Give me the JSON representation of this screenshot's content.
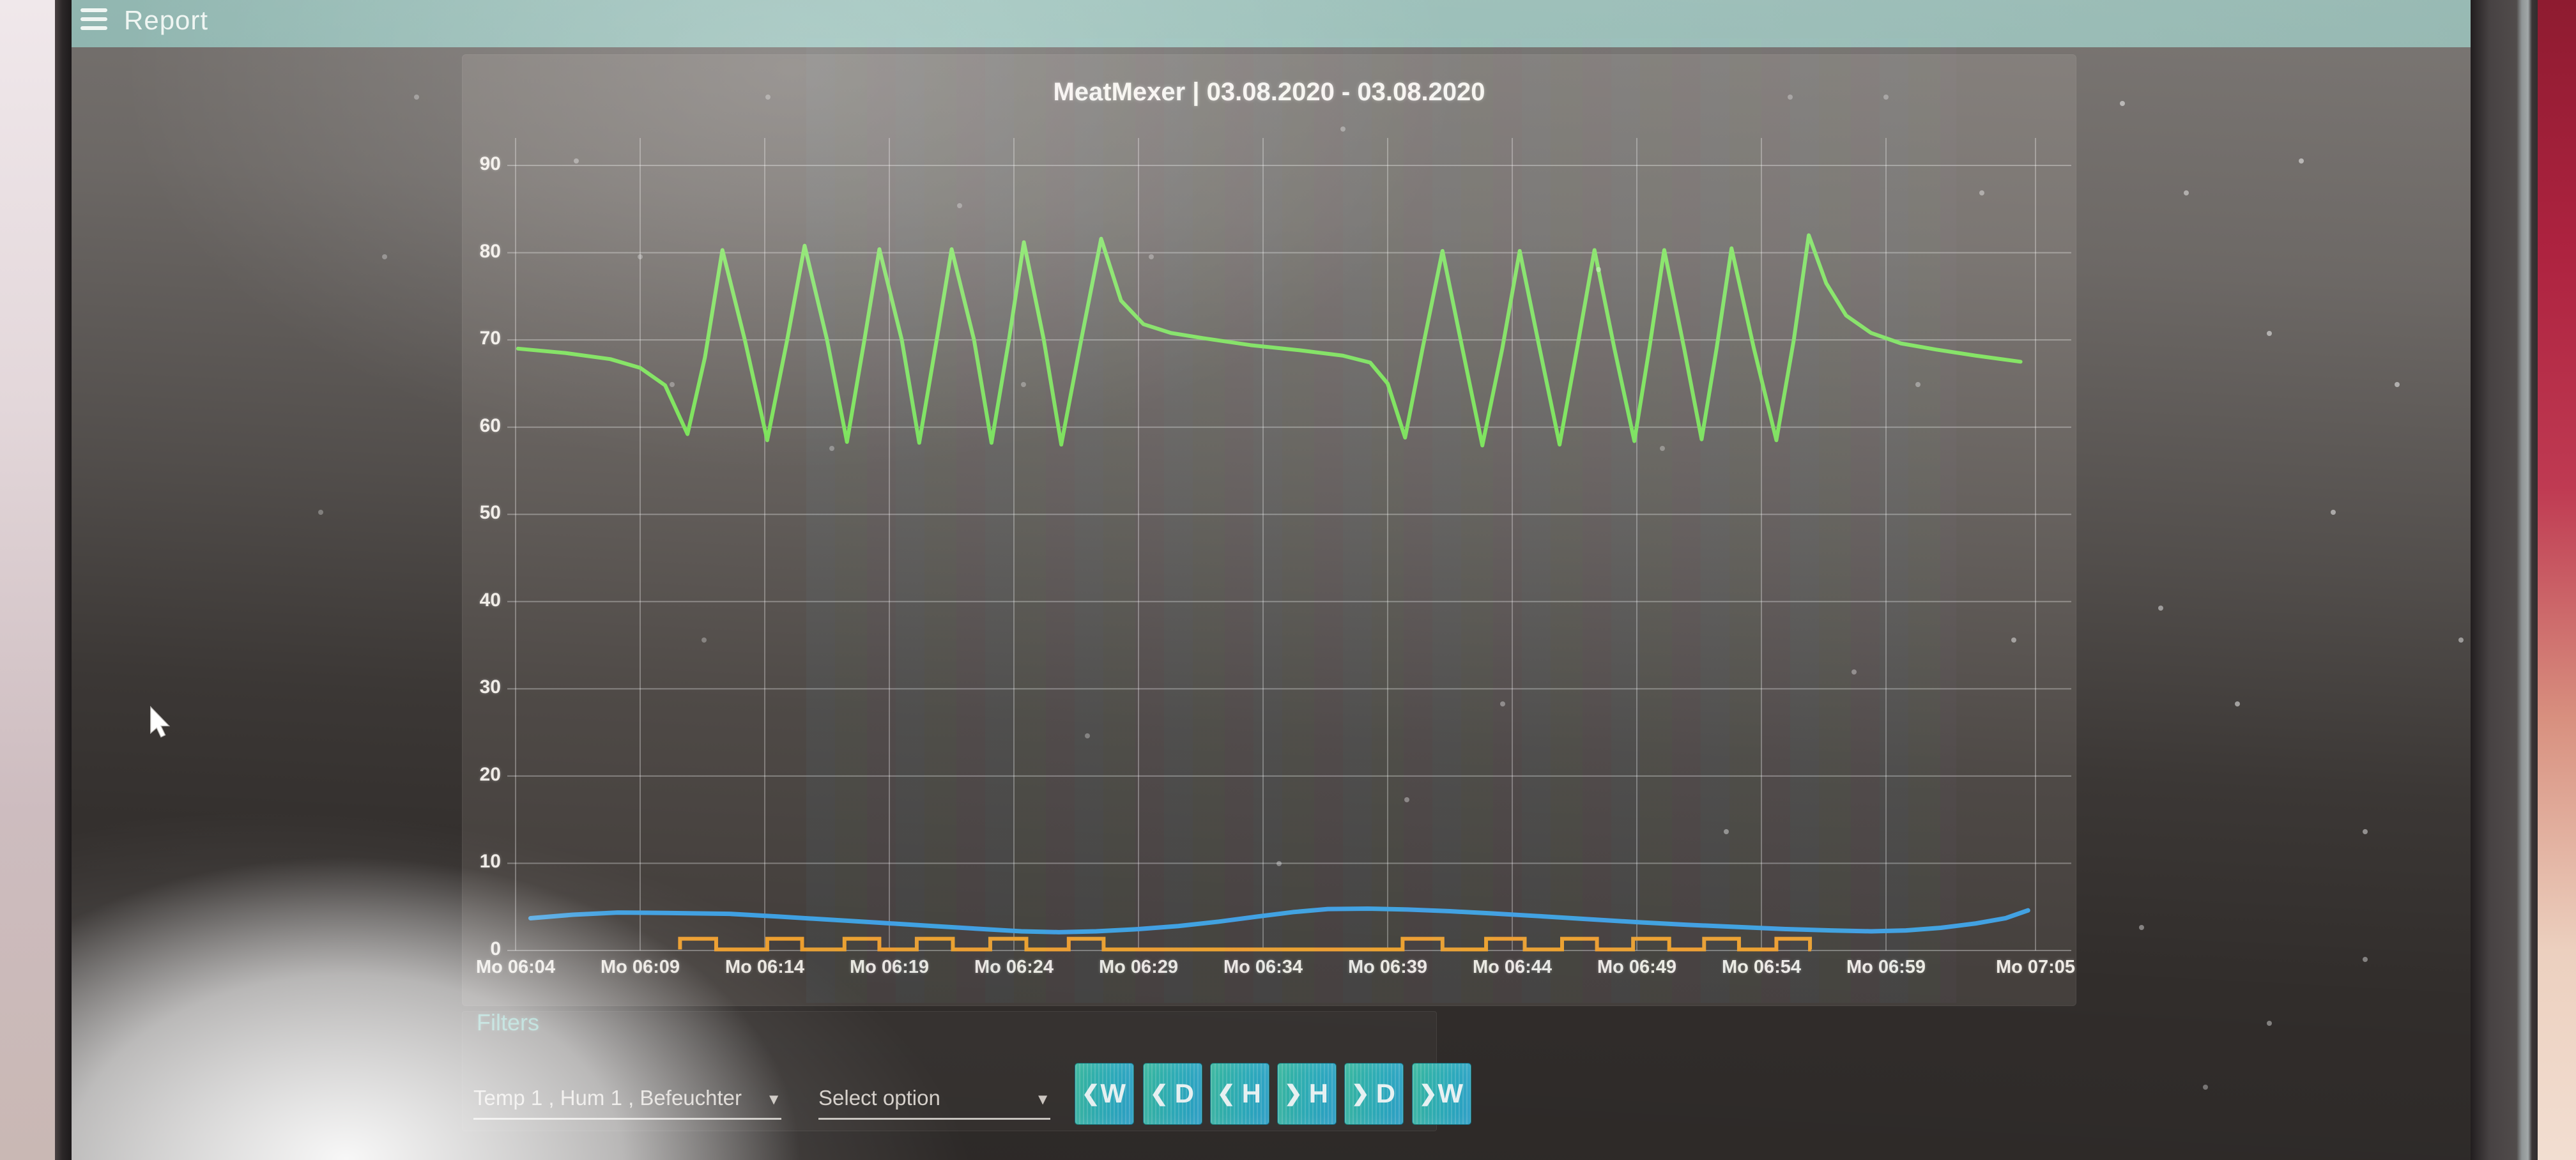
{
  "app_bar": {
    "title": "Report"
  },
  "colors": {
    "appbar_teal": "#68a19a",
    "button_teal": "#2fb4c2",
    "filters_heading_teal": "#58b6ab",
    "panel_background": "#45403d",
    "series_green": "#5fdd38",
    "series_blue": "#3fa0e2",
    "series_orange": "#efa02f"
  },
  "filters": {
    "heading": "Filters",
    "series_select": {
      "value": "Temp 1 , Hum 1 , Befeuchter"
    },
    "option_select": {
      "placeholder": "Select option"
    },
    "caret_glyph": "▼",
    "nav_buttons": [
      {
        "glyph": "❮",
        "letter": "W"
      },
      {
        "glyph": "❮",
        "letter": "D"
      },
      {
        "glyph": "❮",
        "letter": "H"
      },
      {
        "glyph": "❯",
        "letter": "H"
      },
      {
        "glyph": "❯",
        "letter": "D"
      },
      {
        "glyph": "❯",
        "letter": "W"
      }
    ]
  },
  "chart_data": {
    "type": "line",
    "title": "MeatMexer | 03.08.2020 - 03.08.2020",
    "grid": true,
    "legend_position": "none",
    "x_unit": "minutes after Mo 06:04",
    "x_axis": {
      "tick_minutes": [
        0,
        5,
        10,
        15,
        20,
        25,
        30,
        35,
        40,
        45,
        50,
        55,
        61
      ],
      "tick_labels": [
        "Mo 06:04",
        "Mo 06:09",
        "Mo 06:14",
        "Mo 06:19",
        "Mo 06:24",
        "Mo 06:29",
        "Mo 06:34",
        "Mo 06:39",
        "Mo 06:44",
        "Mo 06:49",
        "Mo 06:54",
        "Mo 06:59",
        "Mo 07:05"
      ]
    },
    "y_axis": {
      "ticks": [
        0,
        10,
        20,
        30,
        40,
        50,
        60,
        70,
        80,
        90
      ],
      "range": [
        0,
        95
      ]
    },
    "series": [
      {
        "name": "Temp 1",
        "type": "line",
        "color": "#5fdd38",
        "width": 6,
        "points": [
          [
            0.1,
            69.0
          ],
          [
            2.0,
            68.5
          ],
          [
            3.8,
            67.8
          ],
          [
            5.0,
            66.8
          ],
          [
            6.0,
            64.8
          ],
          [
            6.9,
            59.2
          ],
          [
            7.6,
            68.0
          ],
          [
            8.3,
            80.3
          ],
          [
            9.2,
            70.0
          ],
          [
            10.1,
            58.5
          ],
          [
            10.9,
            70.0
          ],
          [
            11.6,
            80.8
          ],
          [
            12.5,
            70.0
          ],
          [
            13.3,
            58.3
          ],
          [
            14.0,
            70.0
          ],
          [
            14.6,
            80.4
          ],
          [
            15.5,
            70.0
          ],
          [
            16.2,
            58.2
          ],
          [
            16.9,
            70.0
          ],
          [
            17.5,
            80.4
          ],
          [
            18.4,
            70.0
          ],
          [
            19.1,
            58.2
          ],
          [
            19.8,
            70.0
          ],
          [
            20.4,
            81.2
          ],
          [
            21.2,
            70.0
          ],
          [
            21.9,
            58.0
          ],
          [
            22.7,
            70.0
          ],
          [
            23.5,
            81.6
          ],
          [
            24.3,
            74.5
          ],
          [
            25.2,
            71.8
          ],
          [
            26.3,
            70.8
          ],
          [
            27.6,
            70.2
          ],
          [
            29.5,
            69.4
          ],
          [
            31.5,
            68.8
          ],
          [
            33.2,
            68.2
          ],
          [
            34.3,
            67.4
          ],
          [
            35.0,
            65.0
          ],
          [
            35.7,
            58.8
          ],
          [
            36.4,
            69.0
          ],
          [
            37.2,
            80.2
          ],
          [
            38.0,
            69.0
          ],
          [
            38.8,
            57.9
          ],
          [
            39.6,
            69.0
          ],
          [
            40.3,
            80.2
          ],
          [
            41.1,
            69.0
          ],
          [
            41.9,
            58.0
          ],
          [
            42.6,
            69.0
          ],
          [
            43.3,
            80.3
          ],
          [
            44.1,
            69.0
          ],
          [
            44.9,
            58.4
          ],
          [
            45.5,
            69.0
          ],
          [
            46.1,
            80.3
          ],
          [
            46.9,
            69.0
          ],
          [
            47.6,
            58.6
          ],
          [
            48.2,
            69.0
          ],
          [
            48.8,
            80.5
          ],
          [
            49.7,
            69.0
          ],
          [
            50.6,
            58.5
          ],
          [
            51.3,
            70.0
          ],
          [
            51.9,
            82.0
          ],
          [
            52.6,
            76.5
          ],
          [
            53.4,
            72.8
          ],
          [
            54.4,
            70.8
          ],
          [
            55.6,
            69.6
          ],
          [
            57.0,
            68.9
          ],
          [
            58.6,
            68.2
          ],
          [
            60.4,
            67.5
          ]
        ]
      },
      {
        "name": "Hum 1",
        "type": "line",
        "color": "#3fa0e2",
        "width": 7,
        "points": [
          [
            0.6,
            3.7
          ],
          [
            2.3,
            4.1
          ],
          [
            4.1,
            4.35
          ],
          [
            6.0,
            4.3
          ],
          [
            8.6,
            4.2
          ],
          [
            10.5,
            3.9
          ],
          [
            12.5,
            3.55
          ],
          [
            14.5,
            3.2
          ],
          [
            16.5,
            2.85
          ],
          [
            18.5,
            2.5
          ],
          [
            20.3,
            2.2
          ],
          [
            21.8,
            2.1
          ],
          [
            23.3,
            2.2
          ],
          [
            25.0,
            2.45
          ],
          [
            26.6,
            2.8
          ],
          [
            28.2,
            3.3
          ],
          [
            29.8,
            3.9
          ],
          [
            31.2,
            4.4
          ],
          [
            32.6,
            4.75
          ],
          [
            34.2,
            4.8
          ],
          [
            35.8,
            4.7
          ],
          [
            37.5,
            4.5
          ],
          [
            39.2,
            4.25
          ],
          [
            41.0,
            3.95
          ],
          [
            43.0,
            3.6
          ],
          [
            45.0,
            3.25
          ],
          [
            47.0,
            2.95
          ],
          [
            49.0,
            2.7
          ],
          [
            51.0,
            2.45
          ],
          [
            52.8,
            2.3
          ],
          [
            54.4,
            2.2
          ],
          [
            55.8,
            2.3
          ],
          [
            57.2,
            2.6
          ],
          [
            58.6,
            3.1
          ],
          [
            59.8,
            3.7
          ],
          [
            60.7,
            4.6
          ]
        ]
      },
      {
        "name": "Befeuchter",
        "type": "step",
        "color": "#efa02f",
        "width": 6,
        "off_value": 0.12,
        "on_value": 1.35,
        "active_range": [
          6.6,
          52.0
        ],
        "on_intervals": [
          [
            6.6,
            8.05
          ],
          [
            10.1,
            11.5
          ],
          [
            13.2,
            14.6
          ],
          [
            16.1,
            17.55
          ],
          [
            19.05,
            20.5
          ],
          [
            22.2,
            23.6
          ],
          [
            35.6,
            37.2
          ],
          [
            38.95,
            40.5
          ],
          [
            42.0,
            43.4
          ],
          [
            44.85,
            46.3
          ],
          [
            47.7,
            49.1
          ],
          [
            50.6,
            51.95
          ]
        ]
      }
    ]
  }
}
